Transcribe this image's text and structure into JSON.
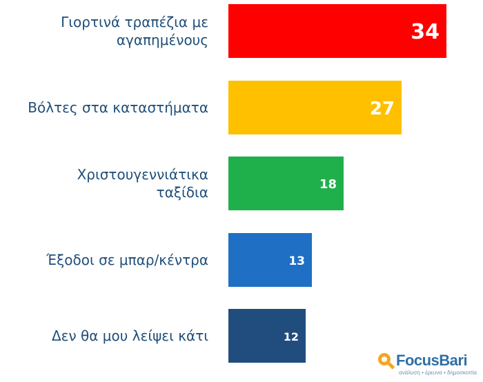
{
  "chart_data": {
    "type": "bar",
    "orientation": "horizontal",
    "categories": [
      "Γιορτινά τραπέζια με αγαπημένους",
      "Βόλτες στα καταστήματα",
      "Χριστουγεννιάτικα ταξίδια",
      "Έξοδοι σε μπαρ/κέντρα",
      "Δεν θα μου λείψει κάτι"
    ],
    "category_lines": [
      [
        "Γιορτινά τραπέζια με",
        "αγαπημένους"
      ],
      [
        "Βόλτες στα καταστήματα"
      ],
      [
        "Χριστουγεννιάτικα",
        "ταξίδια"
      ],
      [
        "Έξοδοι σε μπαρ/κέντρα"
      ],
      [
        "Δεν θα μου λείψει κάτι"
      ]
    ],
    "values": [
      34,
      27,
      18,
      13,
      12
    ],
    "colors": [
      "#ff0000",
      "#ffc000",
      "#1fb04c",
      "#1f6fc5",
      "#204d7d"
    ],
    "xlim": [
      0,
      34
    ],
    "grid": false,
    "legend": false
  },
  "logo": {
    "name": "FocusBari",
    "tagline": "ανάλυση • έρευνα • δημοσκοπία"
  }
}
